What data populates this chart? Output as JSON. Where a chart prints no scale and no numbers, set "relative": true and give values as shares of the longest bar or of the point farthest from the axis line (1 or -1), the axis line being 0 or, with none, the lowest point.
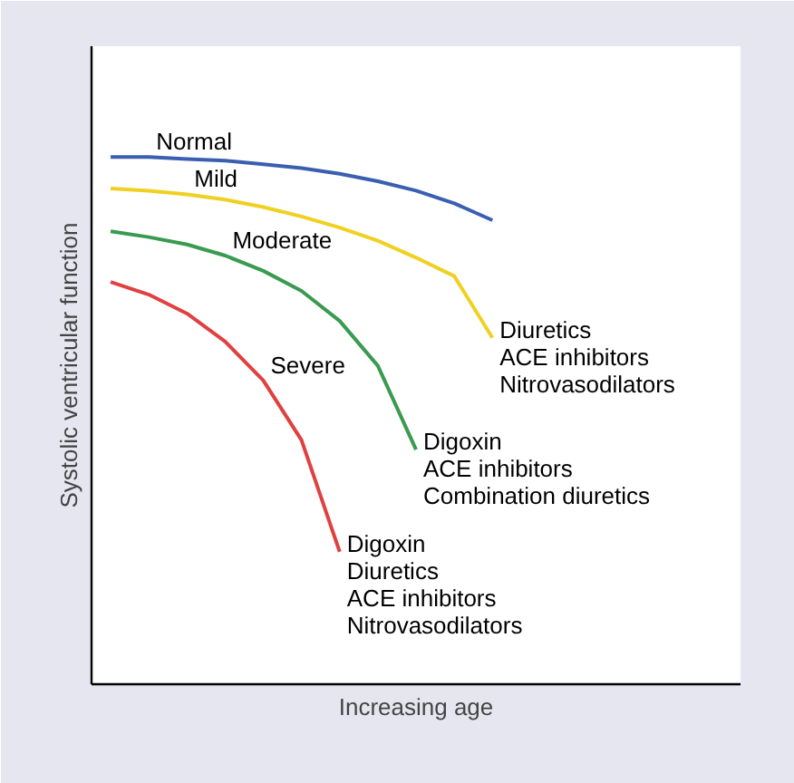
{
  "chart_data": {
    "type": "line",
    "relative": true,
    "xlabel": "Increasing age",
    "ylabel": "Systolic ventricular function",
    "categories": [
      null,
      null,
      null,
      null,
      null,
      null,
      null,
      null,
      null,
      null,
      null,
      null,
      null,
      null,
      null,
      null,
      null
    ],
    "series": [
      {
        "name": "Normal",
        "color": "#3a5fb0",
        "values": [
          1.0,
          1.0,
          0.996,
          0.993,
          0.986,
          0.979,
          0.968,
          0.954,
          0.936,
          0.912,
          0.88,
          null,
          null,
          null,
          null,
          null,
          null
        ]
      },
      {
        "name": "Mild",
        "color": "#f0d020",
        "values": [
          0.94,
          0.936,
          0.929,
          0.919,
          0.905,
          0.887,
          0.866,
          0.841,
          0.809,
          0.774,
          0.657,
          null,
          null,
          null,
          null,
          null,
          null
        ]
      },
      {
        "name": "Moderate",
        "color": "#3a9a50",
        "values": [
          0.859,
          0.848,
          0.834,
          0.813,
          0.784,
          0.746,
          0.689,
          0.604,
          0.445,
          null,
          null,
          null,
          null,
          null,
          null,
          null,
          null
        ]
      },
      {
        "name": "Severe",
        "color": "#e04040",
        "values": [
          0.763,
          0.739,
          0.703,
          0.65,
          0.576,
          0.463,
          0.251,
          null,
          null,
          null,
          null,
          null,
          null,
          null,
          null,
          null,
          null
        ]
      }
    ],
    "annotations": [
      "Diuretics\nACE inhibitors\nNitrovasodilators",
      "Digoxin\nACE inhibitors\nCombination diuretics",
      "Digoxin\nDiuretics\nACE inhibitors\nNitrovasodilators"
    ],
    "line_style": "solid"
  }
}
